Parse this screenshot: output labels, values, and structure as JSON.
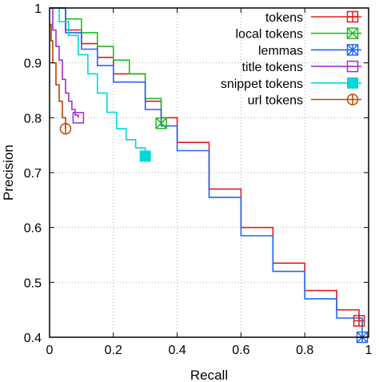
{
  "chart_data": {
    "type": "line",
    "title": "",
    "xlabel": "Recall",
    "ylabel": "Precision",
    "xlim": [
      0,
      1
    ],
    "ylim": [
      0.4,
      1
    ],
    "xticks": [
      0,
      0.2,
      0.4,
      0.6,
      0.8,
      1
    ],
    "xtick_labels": [
      "0",
      "0.2",
      "0.4",
      "0.6",
      "0.8",
      "1"
    ],
    "yticks": [
      0.4,
      0.5,
      0.6,
      0.7,
      0.8,
      0.9,
      1
    ],
    "ytick_labels": [
      "0.4",
      "0.5",
      "0.6",
      "0.7",
      "0.8",
      "0.9",
      "1"
    ],
    "grid": true,
    "legend_position": "top-right",
    "series": [
      {
        "name": "tokens",
        "color": "#e41a1c",
        "marker": "square-plus",
        "x": [
          0,
          0.05,
          0.1,
          0.15,
          0.2,
          0.3,
          0.35,
          0.4,
          0.5,
          0.6,
          0.7,
          0.8,
          0.9,
          0.97
        ],
        "y": [
          1.0,
          0.96,
          0.935,
          0.91,
          0.88,
          0.83,
          0.8,
          0.755,
          0.67,
          0.6,
          0.535,
          0.485,
          0.45,
          0.43
        ]
      },
      {
        "name": "local tokens",
        "color": "#22bb22",
        "marker": "square-x",
        "x": [
          0,
          0.05,
          0.1,
          0.15,
          0.2,
          0.25,
          0.3,
          0.35
        ],
        "y": [
          1.0,
          0.98,
          0.955,
          0.93,
          0.905,
          0.88,
          0.835,
          0.79
        ]
      },
      {
        "name": "lemmas",
        "color": "#2266ee",
        "marker": "square-star",
        "x": [
          0,
          0.05,
          0.1,
          0.15,
          0.2,
          0.3,
          0.35,
          0.4,
          0.5,
          0.6,
          0.7,
          0.8,
          0.9,
          0.98
        ],
        "y": [
          1.0,
          0.955,
          0.925,
          0.895,
          0.865,
          0.815,
          0.785,
          0.74,
          0.655,
          0.585,
          0.52,
          0.47,
          0.435,
          0.4
        ]
      },
      {
        "name": "title tokens",
        "color": "#9b30d0",
        "marker": "square-open",
        "x": [
          0,
          0.01,
          0.02,
          0.03,
          0.04,
          0.05,
          0.06,
          0.07,
          0.08,
          0.09
        ],
        "y": [
          1.0,
          0.96,
          0.93,
          0.905,
          0.87,
          0.845,
          0.83,
          0.815,
          0.805,
          0.8
        ]
      },
      {
        "name": "snippet tokens",
        "color": "#00d8d8",
        "marker": "square-filled",
        "x": [
          0,
          0.03,
          0.06,
          0.09,
          0.12,
          0.15,
          0.18,
          0.21,
          0.24,
          0.27,
          0.3
        ],
        "y": [
          1.0,
          0.975,
          0.95,
          0.915,
          0.88,
          0.845,
          0.81,
          0.78,
          0.76,
          0.745,
          0.73
        ]
      },
      {
        "name": "url tokens",
        "color": "#bb4400",
        "marker": "circle-bar",
        "x": [
          0,
          0.005,
          0.01,
          0.02,
          0.03,
          0.04,
          0.05
        ],
        "y": [
          0.97,
          0.94,
          0.9,
          0.86,
          0.83,
          0.8,
          0.78
        ]
      }
    ]
  }
}
